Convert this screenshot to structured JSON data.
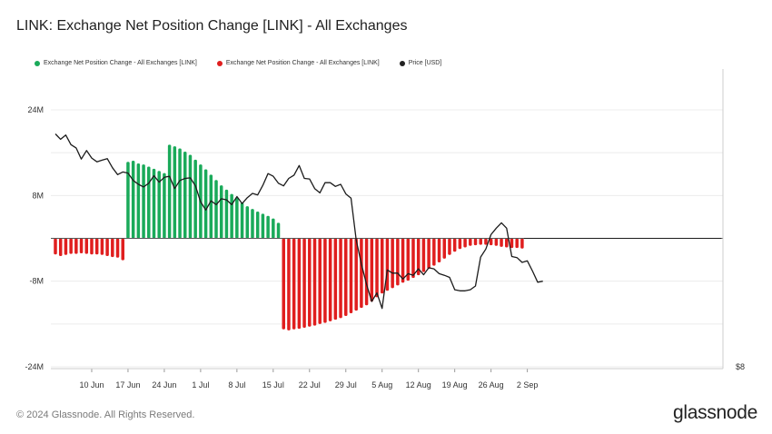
{
  "title": "LINK: Exchange Net Position Change [LINK] - All Exchanges",
  "legend": [
    {
      "label": "Exchange Net Position Change - All Exchanges [LINK]",
      "color": "#1aaa5a"
    },
    {
      "label": "Exchange Net Position Change - All Exchanges [LINK]",
      "color": "#e01e1e"
    },
    {
      "label": "Price [USD]",
      "color": "#222222"
    }
  ],
  "footer": "© 2024 Glassnode. All Rights Reserved.",
  "brand": "glassnode",
  "chart_data": {
    "type": "bar",
    "title": "LINK: Exchange Net Position Change [LINK] - All Exchanges",
    "y_left": {
      "ticks": [
        "24M",
        "8M",
        "-8M",
        "-24M"
      ],
      "tick_values": [
        24000000,
        8000000,
        -8000000,
        -24000000
      ],
      "range": [
        -24000000,
        24000000
      ]
    },
    "y_right": {
      "ticks": [
        "$8"
      ]
    },
    "x_ticks": [
      "10 Jun",
      "17 Jun",
      "24 Jun",
      "1 Jul",
      "8 Jul",
      "15 Jul",
      "22 Jul",
      "29 Jul",
      "5 Aug",
      "12 Aug",
      "19 Aug",
      "26 Aug",
      "2 Sep"
    ],
    "x_tick_day_index": [
      7,
      14,
      21,
      28,
      35,
      42,
      49,
      56,
      63,
      70,
      77,
      84,
      91
    ],
    "start_date": "3 Jun",
    "net_position_change_M": [
      -3,
      -3.3,
      -3.1,
      -2.9,
      -2.9,
      -2.8,
      -2.9,
      -3,
      -3,
      -3.1,
      -3.3,
      -3.5,
      -3.6,
      -4.1,
      14.3,
      14.5,
      14,
      13.8,
      13.4,
      13,
      12.6,
      12.2,
      17.5,
      17.2,
      16.8,
      16.2,
      15.6,
      14.7,
      13.8,
      12.9,
      11.9,
      10.9,
      9.9,
      9.1,
      8.3,
      7.6,
      6.7,
      6,
      5.5,
      5,
      4.6,
      4.2,
      3.7,
      2.9,
      -17,
      -17.2,
      -17,
      -16.9,
      -16.7,
      -16.5,
      -16.3,
      -16,
      -15.8,
      -15.5,
      -15.2,
      -14.9,
      -14.5,
      -14,
      -13.5,
      -13,
      -12.5,
      -11.8,
      -11,
      -10.3,
      -9.8,
      -9.3,
      -8.8,
      -8.3,
      -7.9,
      -7.4,
      -6.9,
      -6.3,
      -5.7,
      -5.1,
      -4.5,
      -3.8,
      -3.1,
      -2.5,
      -2,
      -1.7,
      -1.4,
      -1.3,
      -1.2,
      -1.2,
      -1.3,
      -1.4,
      -1.6,
      -1.7,
      -1.8,
      -1.8,
      -1.9
    ],
    "price_usd_approx": [
      19.5,
      18.5,
      19.3,
      17.5,
      16.9,
      14.8,
      16.4,
      15,
      14.3,
      14.6,
      14.9,
      13.2,
      11.9,
      12.4,
      12.2,
      10.8,
      10.1,
      9.6,
      10.3,
      11.7,
      10.5,
      11.4,
      11.6,
      9.3,
      10.8,
      11.2,
      11.3,
      9.8,
      6.8,
      5.3,
      7,
      6.3,
      7.4,
      7.2,
      6.3,
      7.8,
      6.5,
      7.6,
      8.4,
      8.1,
      9.9,
      12.1,
      11.6,
      10.3,
      9.8,
      11.2,
      11.8,
      13.6,
      11.2,
      11.1,
      9.3,
      8.5,
      10.4,
      10.4,
      9.7,
      10.1,
      8.3,
      7.5,
      -0.3,
      -4.8,
      -8.6,
      -11.8,
      -10.2,
      -13.1,
      -5.9,
      -6.5,
      -6.5,
      -7.6,
      -6.6,
      -6.9,
      -5.7,
      -6.8,
      -5.5,
      -5.7,
      -6.6,
      -6.9,
      -7.3,
      -9.6,
      -9.8,
      -9.8,
      -9.6,
      -8.9,
      -3.5,
      -2,
      0.7,
      1.9,
      2.9,
      1.9,
      -3.4,
      -3.6,
      -4.5,
      -4.2,
      -6.1,
      -8.2,
      -8
    ]
  }
}
